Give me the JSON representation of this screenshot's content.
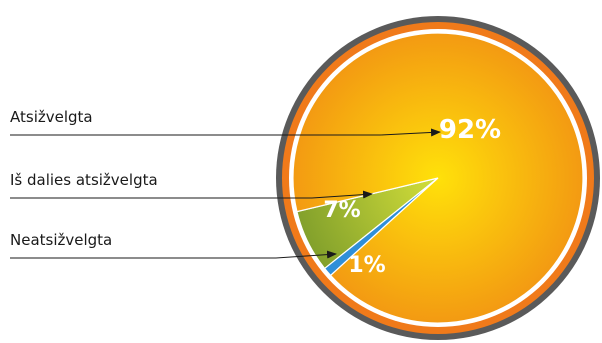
{
  "chart_data": {
    "type": "pie",
    "title": "",
    "categories": [
      "Atsižvelgta",
      "Iš dalies atsižvelgta",
      "Neatsižvelgta"
    ],
    "values": [
      92,
      7,
      1
    ],
    "data_labels": [
      "92%",
      "7%",
      "1%"
    ],
    "legend": "left",
    "colors": {
      "outer_ring": "#5a5a5a",
      "orange_ring": "#f07a1a",
      "white_ring": "#ffffff",
      "slice_main_center": "#ffe10a",
      "slice_main_edge": "#f39a12",
      "slice_partial_center": "#d4df3a",
      "slice_partial_edge": "#7a9a2a",
      "slice_small": "#2f8fd8",
      "leader_line": "#1a1a1a"
    }
  }
}
